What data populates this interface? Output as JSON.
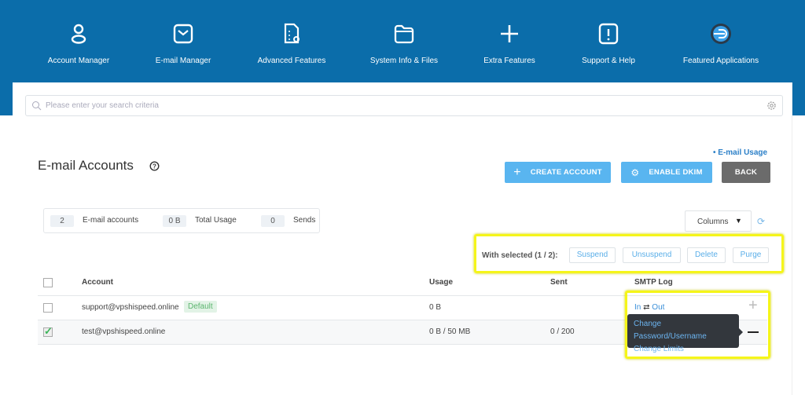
{
  "nav": [
    {
      "label": "Account Manager",
      "icon": "user-icon"
    },
    {
      "label": "E-mail Manager",
      "icon": "envelope-icon"
    },
    {
      "label": "Advanced Features",
      "icon": "document-gear-icon"
    },
    {
      "label": "System Info & Files",
      "icon": "folder-icon"
    },
    {
      "label": "Extra Features",
      "icon": "plus-icon"
    },
    {
      "label": "Support & Help",
      "icon": "exclamation-icon"
    },
    {
      "label": "Featured Applications",
      "icon": "featured-app-icon"
    }
  ],
  "search": {
    "placeholder": "Please enter your search criteria"
  },
  "page": {
    "title": "E-mail Accounts",
    "usage_link": "• E-mail Usage"
  },
  "buttons": {
    "create": "CREATE ACCOUNT",
    "dkim": "ENABLE DKIM",
    "back": "BACK"
  },
  "stats": {
    "accounts_count": "2",
    "accounts_label": "E-mail accounts",
    "usage_value": "0 B",
    "usage_label": "Total Usage",
    "sends_value": "0",
    "sends_label": "Sends"
  },
  "columns_label": "Columns",
  "bulk": {
    "label": "With selected (1 / 2):",
    "suspend": "Suspend",
    "unsuspend": "Unsuspend",
    "delete": "Delete",
    "purge": "Purge"
  },
  "table": {
    "headers": {
      "account": "Account",
      "usage": "Usage",
      "sent": "Sent",
      "smtp": "SMTP Log"
    },
    "rows": [
      {
        "account": "support@vpshispeed.online",
        "badge": "Default",
        "usage": "0 B",
        "sent": "",
        "smtp_in": "In",
        "smtp_out": "Out",
        "checked": false
      },
      {
        "account": "test@vpshispeed.online",
        "usage": "0 B / 50 MB",
        "sent": "0 / 200",
        "checked": true
      }
    ]
  },
  "tooltip": {
    "item1": "Change Password/Username",
    "item2": "Change Limits"
  },
  "colors": {
    "header": "#0b6daa",
    "button_blue": "#59b5f0",
    "back": "#6b6b6b",
    "highlight": "#f5f51a",
    "tooltip": "#33373d"
  }
}
